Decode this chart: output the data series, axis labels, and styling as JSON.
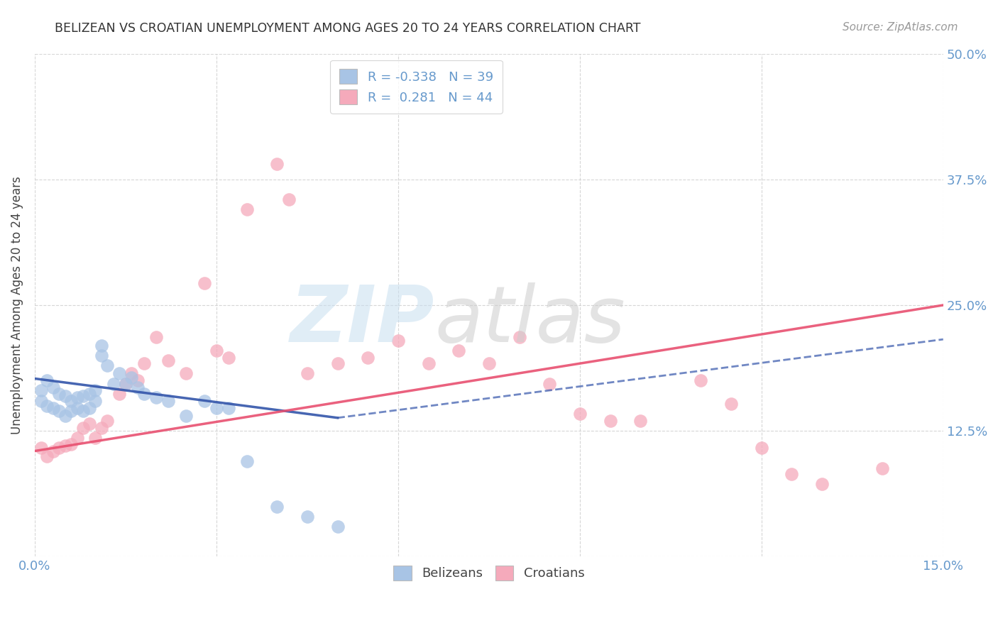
{
  "title": "BELIZEAN VS CROATIAN UNEMPLOYMENT AMONG AGES 20 TO 24 YEARS CORRELATION CHART",
  "source": "Source: ZipAtlas.com",
  "ylabel": "Unemployment Among Ages 20 to 24 years",
  "xlim": [
    0.0,
    0.15
  ],
  "ylim": [
    0.0,
    0.5
  ],
  "yticks": [
    0.0,
    0.125,
    0.25,
    0.375,
    0.5
  ],
  "yticklabels": [
    "",
    "12.5%",
    "25.0%",
    "37.5%",
    "50.0%"
  ],
  "belizean_color": "#a8c4e5",
  "croatian_color": "#f5aabb",
  "belizean_line_color": "#3355aa",
  "croatian_line_color": "#e85070",
  "belizean_R": -0.338,
  "belizean_N": 39,
  "croatian_R": 0.281,
  "croatian_N": 44,
  "tick_color": "#6699cc",
  "bel_x": [
    0.001,
    0.001,
    0.002,
    0.002,
    0.003,
    0.003,
    0.004,
    0.004,
    0.005,
    0.005,
    0.006,
    0.006,
    0.007,
    0.007,
    0.008,
    0.008,
    0.009,
    0.009,
    0.01,
    0.01,
    0.011,
    0.011,
    0.012,
    0.013,
    0.014,
    0.015,
    0.016,
    0.017,
    0.018,
    0.02,
    0.022,
    0.025,
    0.028,
    0.03,
    0.032,
    0.035,
    0.04,
    0.045,
    0.05
  ],
  "bel_y": [
    0.165,
    0.155,
    0.175,
    0.15,
    0.168,
    0.148,
    0.162,
    0.145,
    0.16,
    0.14,
    0.155,
    0.145,
    0.158,
    0.148,
    0.16,
    0.145,
    0.162,
    0.148,
    0.165,
    0.155,
    0.2,
    0.21,
    0.19,
    0.172,
    0.182,
    0.172,
    0.178,
    0.168,
    0.162,
    0.158,
    0.155,
    0.14,
    0.155,
    0.148,
    0.148,
    0.095,
    0.05,
    0.04,
    0.03
  ],
  "cro_x": [
    0.001,
    0.002,
    0.003,
    0.004,
    0.005,
    0.006,
    0.007,
    0.008,
    0.009,
    0.01,
    0.011,
    0.012,
    0.014,
    0.015,
    0.016,
    0.017,
    0.018,
    0.02,
    0.022,
    0.025,
    0.028,
    0.03,
    0.032,
    0.035,
    0.04,
    0.042,
    0.045,
    0.05,
    0.055,
    0.06,
    0.065,
    0.07,
    0.075,
    0.08,
    0.085,
    0.09,
    0.095,
    0.1,
    0.11,
    0.115,
    0.12,
    0.125,
    0.13,
    0.14
  ],
  "cro_y": [
    0.108,
    0.1,
    0.105,
    0.108,
    0.11,
    0.112,
    0.118,
    0.128,
    0.132,
    0.118,
    0.128,
    0.135,
    0.162,
    0.172,
    0.182,
    0.175,
    0.192,
    0.218,
    0.195,
    0.182,
    0.272,
    0.205,
    0.198,
    0.345,
    0.39,
    0.355,
    0.182,
    0.192,
    0.198,
    0.215,
    0.192,
    0.205,
    0.192,
    0.218,
    0.172,
    0.142,
    0.135,
    0.135,
    0.175,
    0.152,
    0.108,
    0.082,
    0.072,
    0.088
  ]
}
